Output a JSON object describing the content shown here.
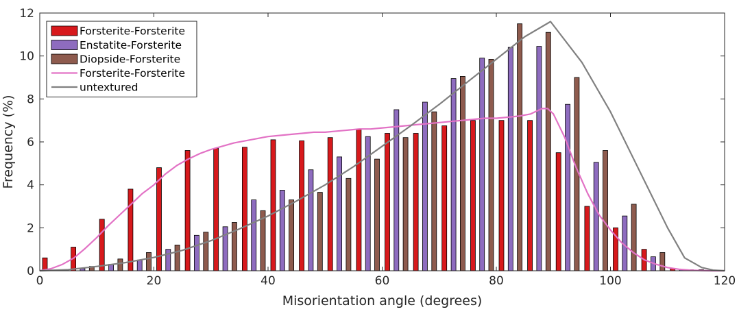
{
  "chart_data": {
    "type": "bar",
    "xlabel": "Misorientation angle (degrees)",
    "ylabel": "Frequency (%)",
    "xlim": [
      0,
      120
    ],
    "ylim": [
      0,
      12
    ],
    "xticks": [
      "0",
      "20",
      "40",
      "60",
      "80",
      "100",
      "120"
    ],
    "yticks": [
      "0",
      "2",
      "4",
      "6",
      "8",
      "10",
      "12"
    ],
    "grid": false,
    "legend_position": "top-left",
    "categories": [
      2.5,
      7.5,
      12.5,
      17.5,
      22.5,
      27.5,
      32.5,
      37.5,
      42.5,
      47.5,
      52.5,
      57.5,
      62.5,
      67.5,
      72.5,
      77.5,
      82.5,
      87.5,
      92.5,
      97.5,
      102.5,
      107.5,
      112.5,
      117.5
    ],
    "series": [
      {
        "name": "Forsterite-Forsterite",
        "kind": "bar",
        "color": "#d7191c",
        "values": [
          0.6,
          1.1,
          2.4,
          3.8,
          4.8,
          5.6,
          5.7,
          5.75,
          6.1,
          6.05,
          6.2,
          6.6,
          6.4,
          6.4,
          6.75,
          7.0,
          7.0,
          7.0,
          5.5,
          3.0,
          2.0,
          1.0,
          0.1,
          0.05
        ]
      },
      {
        "name": "Enstatite-Forsterite",
        "kind": "bar",
        "color": "#8e6cbf",
        "values": [
          0,
          0.1,
          0.3,
          0.5,
          1.0,
          1.65,
          2.05,
          3.3,
          3.75,
          4.7,
          5.3,
          6.25,
          7.5,
          7.85,
          8.95,
          9.9,
          10.4,
          10.45,
          7.75,
          5.05,
          2.55,
          0.65,
          0.05,
          0
        ]
      },
      {
        "name": "Diopside-Forsterite",
        "kind": "bar",
        "color": "#8e5b4e",
        "values": [
          0,
          0.2,
          0.55,
          0.85,
          1.2,
          1.8,
          2.25,
          2.8,
          3.3,
          3.65,
          4.3,
          5.2,
          6.2,
          7.4,
          9.05,
          9.85,
          11.5,
          11.1,
          9.0,
          5.6,
          3.1,
          0.85,
          0.05,
          0
        ]
      },
      {
        "name": "Forsterite-Forsterite",
        "kind": "line",
        "color": "#e272c5",
        "x": [
          0,
          2,
          4,
          6,
          8,
          10,
          12,
          14,
          16,
          18,
          20,
          22,
          24,
          26,
          28,
          30,
          32,
          34,
          36,
          38,
          40,
          42,
          44,
          46,
          48,
          50,
          52,
          54,
          56,
          58,
          60,
          62,
          64,
          66,
          68,
          70,
          72,
          74,
          76,
          78,
          80,
          82,
          84,
          86,
          88,
          89,
          90,
          92,
          94,
          96,
          98,
          100,
          102,
          104,
          106,
          108,
          110,
          112,
          114,
          116,
          118,
          120
        ],
        "y": [
          0,
          0.1,
          0.3,
          0.6,
          1.05,
          1.55,
          2.1,
          2.6,
          3.1,
          3.6,
          4.0,
          4.5,
          4.9,
          5.2,
          5.45,
          5.65,
          5.8,
          5.95,
          6.05,
          6.15,
          6.25,
          6.3,
          6.35,
          6.4,
          6.45,
          6.45,
          6.5,
          6.55,
          6.6,
          6.6,
          6.65,
          6.7,
          6.75,
          6.8,
          6.85,
          6.9,
          6.95,
          7.0,
          7.05,
          7.1,
          7.1,
          7.15,
          7.2,
          7.3,
          7.55,
          7.55,
          7.3,
          6.2,
          4.8,
          3.6,
          2.6,
          1.9,
          1.3,
          0.85,
          0.5,
          0.3,
          0.15,
          0.07,
          0.03,
          0.01,
          0,
          0
        ]
      },
      {
        "name": "untextured",
        "kind": "line",
        "color": "#808080",
        "x": [
          0,
          5,
          10,
          15,
          20,
          25,
          30,
          35,
          40,
          45,
          50,
          55,
          60,
          65,
          70,
          75,
          80,
          85,
          89.5,
          95,
          100,
          105,
          110,
          113,
          116,
          118,
          120
        ],
        "y": [
          0,
          0.05,
          0.2,
          0.38,
          0.62,
          0.95,
          1.4,
          1.95,
          2.55,
          3.25,
          4.0,
          4.85,
          5.8,
          6.75,
          7.75,
          8.8,
          9.85,
          10.9,
          11.6,
          9.7,
          7.4,
          4.7,
          2.0,
          0.6,
          0.15,
          0.03,
          0
        ]
      }
    ]
  }
}
